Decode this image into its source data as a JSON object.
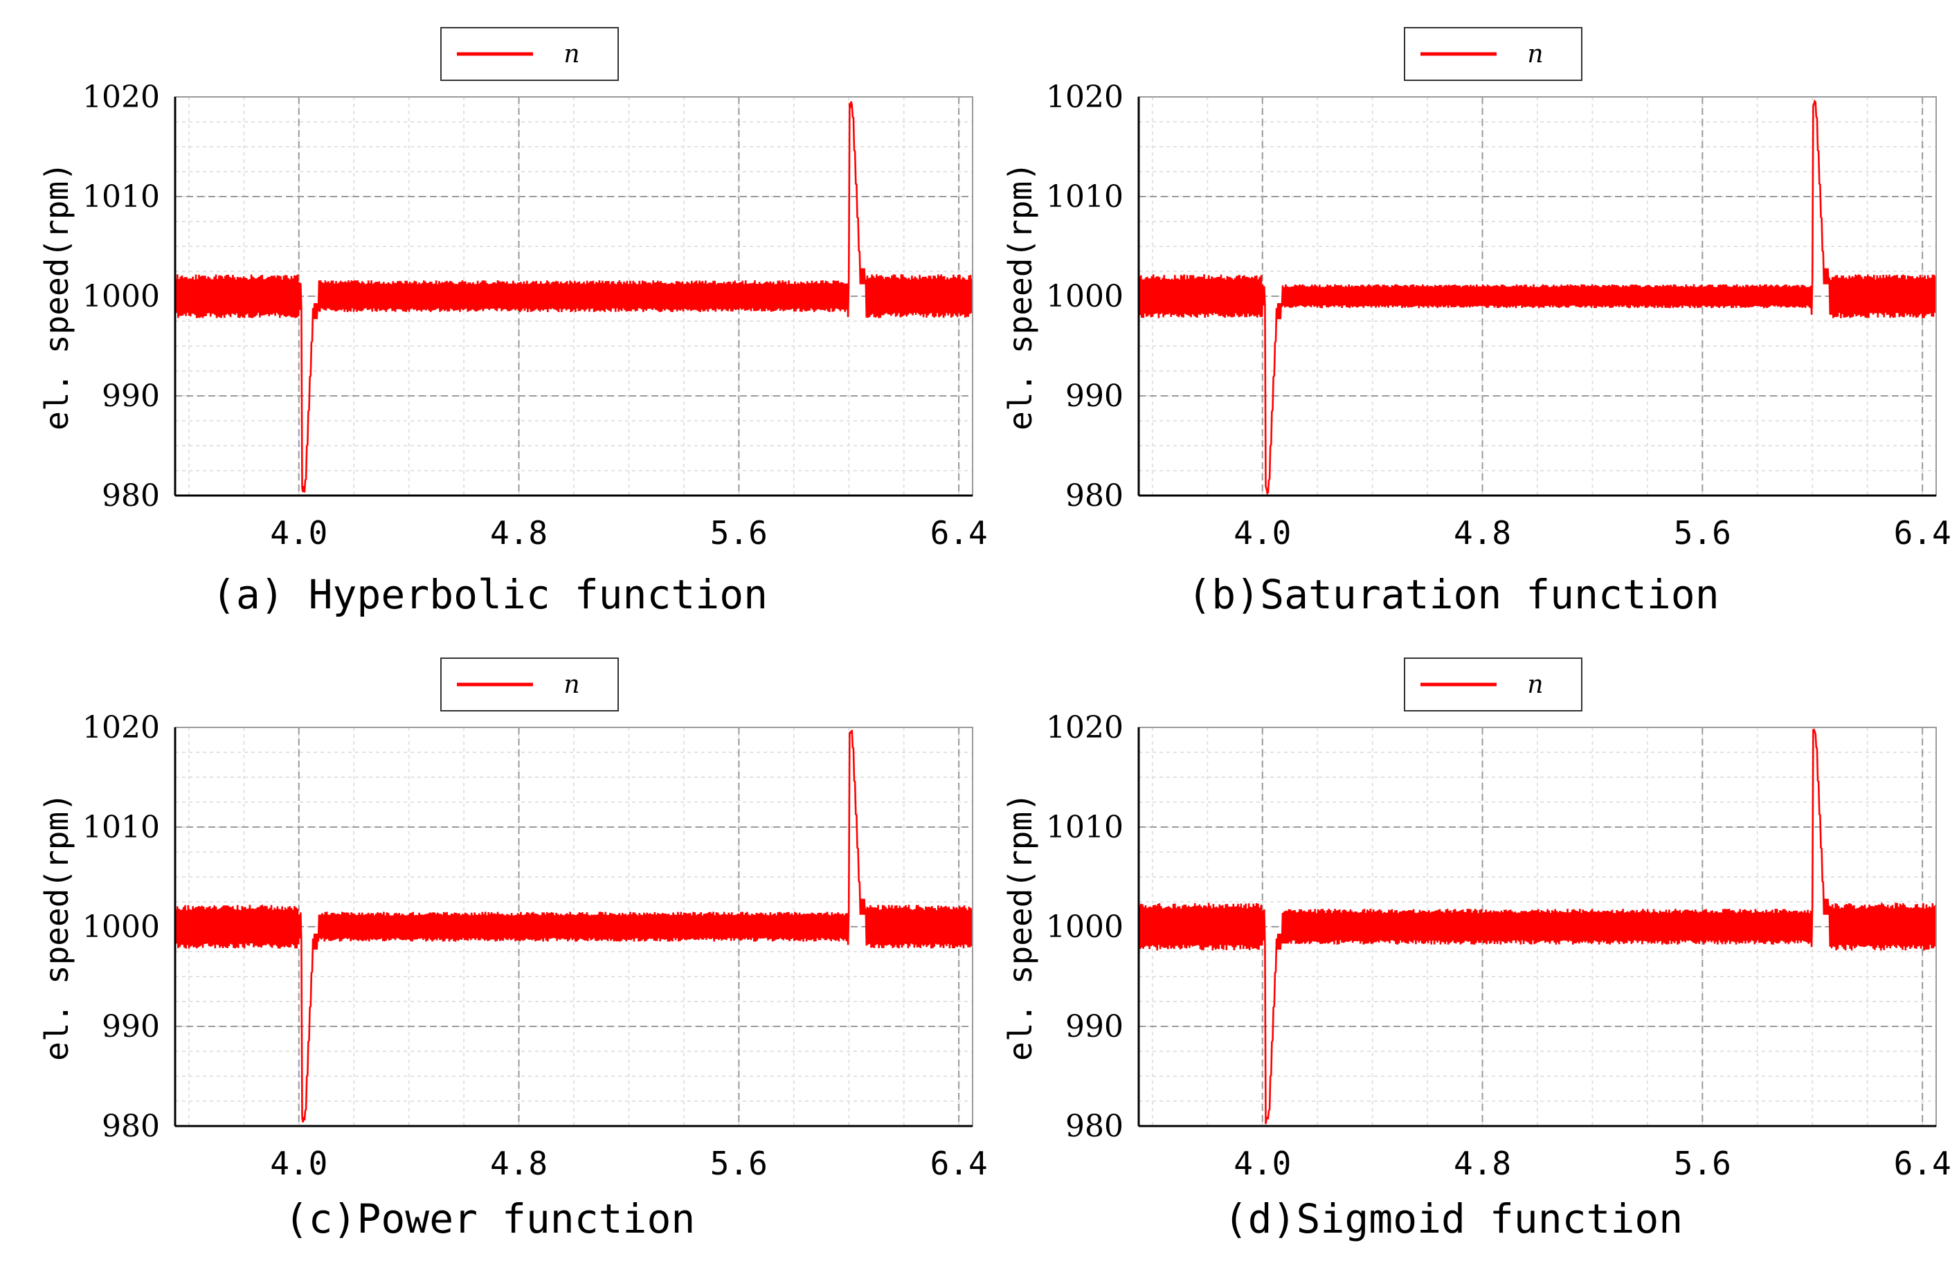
{
  "colors": {
    "series": "#ff0000",
    "grid": "#c8c8c8",
    "axis": "#000000"
  },
  "chart_data": [
    {
      "type": "line",
      "caption": "(a) Hyperbolic function",
      "ylabel": "el. speed(rpm)",
      "legend": [
        "n"
      ],
      "xlim": [
        3.55,
        6.45
      ],
      "ylim": [
        980,
        1020
      ],
      "xticks": [
        4.0,
        4.8,
        5.6,
        6.4
      ],
      "xtick_labels": [
        "4.0",
        "4.8",
        "5.6",
        "6.4"
      ],
      "yticks": [
        980,
        990,
        1000,
        1010,
        1020
      ],
      "ytick_labels": [
        "980",
        "990",
        "1000",
        "1010",
        "1020"
      ],
      "series": [
        {
          "name": "n",
          "baseline": 1000,
          "ripple_before": 2.2,
          "ripple_mid": 1.6,
          "ripple_after": 2.2,
          "dip_x": 4.01,
          "dip_min": 980,
          "spike_x": 6.0,
          "spike_max": 1020
        }
      ]
    },
    {
      "type": "line",
      "caption": "(b)Saturation function",
      "ylabel": "el. speed(rpm)",
      "legend": [
        "n"
      ],
      "xlim": [
        3.55,
        6.45
      ],
      "ylim": [
        980,
        1020
      ],
      "xticks": [
        4.0,
        4.8,
        5.6,
        6.4
      ],
      "xtick_labels": [
        "4.0",
        "4.8",
        "5.6",
        "6.4"
      ],
      "yticks": [
        980,
        990,
        1000,
        1010,
        1020
      ],
      "ytick_labels": [
        "980",
        "990",
        "1000",
        "1010",
        "1020"
      ],
      "series": [
        {
          "name": "n",
          "baseline": 1000,
          "ripple_before": 2.2,
          "ripple_mid": 1.2,
          "ripple_after": 2.2,
          "dip_x": 4.01,
          "dip_min": 980,
          "spike_x": 6.0,
          "spike_max": 1020
        }
      ]
    },
    {
      "type": "line",
      "caption": "(c)Power function",
      "ylabel": "el. speed(rpm)",
      "legend": [
        "n"
      ],
      "xlim": [
        3.55,
        6.45
      ],
      "ylim": [
        980,
        1020
      ],
      "xticks": [
        4.0,
        4.8,
        5.6,
        6.4
      ],
      "xtick_labels": [
        "4.0",
        "4.8",
        "5.6",
        "6.4"
      ],
      "yticks": [
        980,
        990,
        1000,
        1010,
        1020
      ],
      "ytick_labels": [
        "980",
        "990",
        "1000",
        "1010",
        "1020"
      ],
      "series": [
        {
          "name": "n",
          "baseline": 1000,
          "ripple_before": 2.2,
          "ripple_mid": 1.5,
          "ripple_after": 2.2,
          "dip_x": 4.01,
          "dip_min": 980,
          "spike_x": 6.0,
          "spike_max": 1020
        }
      ]
    },
    {
      "type": "line",
      "caption": "(d)Sigmoid function",
      "ylabel": "el. speed(rpm)",
      "legend": [
        "n"
      ],
      "xlim": [
        3.55,
        6.45
      ],
      "ylim": [
        980,
        1020
      ],
      "xticks": [
        4.0,
        4.8,
        5.6,
        6.4
      ],
      "xtick_labels": [
        "4.0",
        "4.8",
        "5.6",
        "6.4"
      ],
      "yticks": [
        980,
        990,
        1000,
        1010,
        1020
      ],
      "ytick_labels": [
        "980",
        "990",
        "1000",
        "1010",
        "1020"
      ],
      "series": [
        {
          "name": "n",
          "baseline": 1000,
          "ripple_before": 2.4,
          "ripple_mid": 1.8,
          "ripple_after": 2.4,
          "dip_x": 4.01,
          "dip_min": 980,
          "spike_x": 6.0,
          "spike_max": 1020
        }
      ]
    }
  ]
}
